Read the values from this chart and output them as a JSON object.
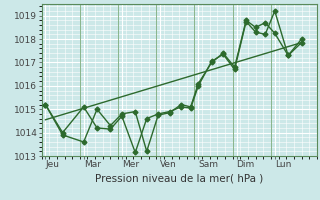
{
  "xlabel": "Pression niveau de la mer( hPa )",
  "bg_color": "#cce8e8",
  "grid_color": "#ffffff",
  "line_color": "#2d6a2d",
  "xlim": [
    0,
    7.2
  ],
  "ylim": [
    1013,
    1019.5
  ],
  "yticks": [
    1013,
    1014,
    1015,
    1016,
    1017,
    1018,
    1019
  ],
  "xtick_labels": [
    "Jeu",
    "Mar",
    "Mer",
    "Ven",
    "Sam",
    "Dim",
    "Lun"
  ],
  "xtick_positions": [
    0.1,
    1.1,
    2.1,
    3.1,
    4.1,
    5.1,
    6.1
  ],
  "vline_positions": [
    0.0,
    1.0,
    2.0,
    3.0,
    4.0,
    5.0,
    6.0,
    7.2
  ],
  "line1_x": [
    0.1,
    0.55,
    1.1,
    1.45,
    1.8,
    2.1,
    2.45,
    2.75,
    3.05,
    3.35,
    3.65,
    3.9,
    4.1,
    4.45,
    4.75,
    5.05,
    5.35,
    5.6,
    5.85,
    6.1,
    6.45,
    6.8
  ],
  "line1_y": [
    1015.2,
    1014.0,
    1015.1,
    1014.2,
    1014.15,
    1014.7,
    1013.15,
    1014.6,
    1014.8,
    1014.9,
    1015.1,
    1015.05,
    1016.0,
    1017.05,
    1017.35,
    1016.7,
    1018.75,
    1018.3,
    1018.2,
    1019.2,
    1017.3,
    1017.85
  ],
  "line2_x": [
    0.1,
    0.55,
    1.1,
    1.45,
    1.8,
    2.1,
    2.45,
    2.75,
    3.05,
    3.35,
    3.65,
    3.9,
    4.1,
    4.45,
    4.75,
    5.05,
    5.35,
    5.6,
    5.85,
    6.1,
    6.45,
    6.8
  ],
  "line2_y": [
    1015.2,
    1013.9,
    1013.6,
    1015.0,
    1014.3,
    1014.8,
    1014.9,
    1013.2,
    1014.75,
    1014.85,
    1015.2,
    1015.1,
    1016.1,
    1017.0,
    1017.4,
    1016.8,
    1018.8,
    1018.5,
    1018.7,
    1018.25,
    1017.3,
    1018.0
  ],
  "trend_x": [
    0.1,
    6.8
  ],
  "trend_y": [
    1014.55,
    1017.85
  ],
  "marker": "D",
  "markersize": 2.5,
  "linewidth": 1.0
}
